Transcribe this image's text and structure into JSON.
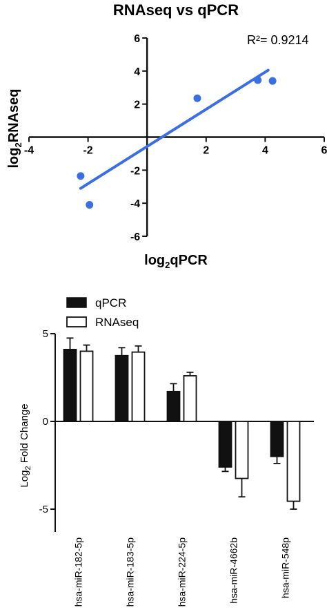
{
  "chart_data": [
    {
      "type": "scatter",
      "title": "RNAseq vs qPCR",
      "xlabel": "log2qPCR",
      "ylabel": "log2RNAseq",
      "xlim": [
        -4,
        6
      ],
      "ylim": [
        -6,
        6
      ],
      "xticks": [
        -4,
        -2,
        2,
        4,
        6
      ],
      "yticks": [
        -6,
        -4,
        -2,
        2,
        4,
        6
      ],
      "annotation": "R²= 0.9214",
      "points": [
        {
          "x": -2.25,
          "y": -2.35
        },
        {
          "x": -1.95,
          "y": -4.1
        },
        {
          "x": 1.7,
          "y": 2.35
        },
        {
          "x": 3.75,
          "y": 3.45
        },
        {
          "x": 4.25,
          "y": 3.4
        }
      ],
      "fit_line": {
        "x": [
          -2.25,
          4.1
        ],
        "y": [
          -3.1,
          4.05
        ]
      },
      "color": "#3b6fe0",
      "grid": false
    },
    {
      "type": "bar",
      "ylabel": "Log2 Fold Change",
      "ylim": [
        -6.3,
        5
      ],
      "yticks": [
        -5,
        0,
        5
      ],
      "categories": [
        "hsa-miR-182-5p",
        "hsa-miR-183-5p",
        "hsa-miR-224-5p",
        "hsa-miR-4662b",
        "hsa-miR-548p"
      ],
      "series": [
        {
          "name": "qPCR",
          "values": [
            4.1,
            3.75,
            1.7,
            -2.6,
            -2.0
          ],
          "errors": [
            0.65,
            0.45,
            0.45,
            0.25,
            0.4
          ],
          "color": "#111111"
        },
        {
          "name": "RNAseq",
          "values": [
            4.0,
            3.95,
            2.6,
            -3.25,
            -4.55
          ],
          "errors": [
            0.35,
            0.35,
            0.2,
            1.05,
            0.45
          ],
          "color": "#ffffff"
        }
      ],
      "legend": "top-left",
      "grid": false
    }
  ]
}
